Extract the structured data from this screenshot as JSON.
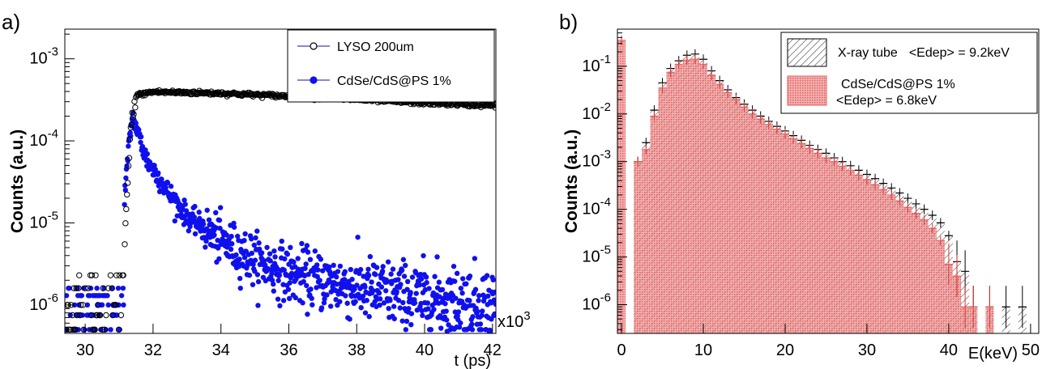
{
  "chart_data": [
    {
      "type": "scatter",
      "panel_label": "a)",
      "xlabel": "t (ps)",
      "ylabel": "Counts (a.u.)",
      "x_multiplier_label": "x10",
      "x_multiplier_exp": "3",
      "xlim": [
        29400,
        42100
      ],
      "ylim": [
        4.5e-07,
        0.0023
      ],
      "yscale": "log",
      "x_ticks": [
        {
          "v": 30,
          "label": "30"
        },
        {
          "v": 32,
          "label": "32"
        },
        {
          "v": 34,
          "label": "34"
        },
        {
          "v": 36,
          "label": "36"
        },
        {
          "v": 38,
          "label": "38"
        },
        {
          "v": 40,
          "label": "40"
        },
        {
          "v": 42,
          "label": "42"
        }
      ],
      "y_ticks": [
        {
          "v": 1e-06,
          "base": "10",
          "exp": "-6"
        },
        {
          "v": 1e-05,
          "base": "10",
          "exp": "-5"
        },
        {
          "v": 0.0001,
          "base": "10",
          "exp": "-4"
        },
        {
          "v": 0.001,
          "base": "10",
          "exp": "-3"
        }
      ],
      "legend_position": "top-right",
      "series": [
        {
          "name": "LYSO 200um",
          "marker": "open-circle",
          "color": "#000000",
          "description_points": [
            [
              29500,
              5e-07
            ],
            [
              30000,
              1.6e-06
            ],
            [
              30500,
              2.3e-06
            ],
            [
              31000,
              1.6e-06
            ],
            [
              31150,
              5e-06
            ],
            [
              31250,
              3e-05
            ],
            [
              31350,
              0.00015
            ],
            [
              31500,
              0.00036
            ],
            [
              32000,
              0.000395
            ],
            [
              34000,
              0.00038
            ],
            [
              36000,
              0.00035
            ],
            [
              38000,
              0.00032
            ],
            [
              40000,
              0.00029
            ],
            [
              42000,
              0.00027
            ]
          ]
        },
        {
          "name": "CdSe/CdS@PS 1%",
          "marker": "filled-circle",
          "color": "#1010ee",
          "description_points": [
            [
              29500,
              5e-07
            ],
            [
              30000,
              1e-06
            ],
            [
              30800,
              1.2e-06
            ],
            [
              31150,
              2e-05
            ],
            [
              31300,
              0.0001
            ],
            [
              31400,
              0.0002
            ],
            [
              31800,
              6e-05
            ],
            [
              32500,
              2.2e-05
            ],
            [
              33000,
              1.2e-05
            ],
            [
              34000,
              6e-06
            ],
            [
              35000,
              3.5e-06
            ],
            [
              36000,
              2.4e-06
            ],
            [
              38000,
              1.6e-06
            ],
            [
              40000,
              1.2e-06
            ],
            [
              42000,
              1e-06
            ]
          ]
        }
      ]
    },
    {
      "type": "histogram",
      "panel_label": "b)",
      "xlabel": "E(keV)",
      "ylabel": "Counts (a.u.)",
      "xlim": [
        -0.5,
        51
      ],
      "ylim": [
        2.5e-07,
        0.6
      ],
      "yscale": "log",
      "bin_width": 1,
      "x_ticks": [
        {
          "v": 0,
          "label": "0"
        },
        {
          "v": 10,
          "label": "10"
        },
        {
          "v": 20,
          "label": "20"
        },
        {
          "v": 30,
          "label": "30"
        },
        {
          "v": 40,
          "label": "40"
        },
        {
          "v": 50,
          "label": "50"
        }
      ],
      "y_ticks": [
        {
          "v": 1e-06,
          "base": "10",
          "exp": "-6"
        },
        {
          "v": 1e-05,
          "base": "10",
          "exp": "-5"
        },
        {
          "v": 0.0001,
          "base": "10",
          "exp": "-4"
        },
        {
          "v": 0.001,
          "base": "10",
          "exp": "-3"
        },
        {
          "v": 0.01,
          "base": "10",
          "exp": "-2"
        },
        {
          "v": 0.1,
          "base": "10",
          "exp": "-1"
        }
      ],
      "legend_position": "top-right",
      "series": [
        {
          "name": "X-ray tube",
          "stat_label": "<Edep> = 9.2keV",
          "fill": "hatched",
          "color": "#000000",
          "bins_x": [
            2,
            3,
            4,
            5,
            6,
            7,
            8,
            9,
            10,
            11,
            12,
            13,
            14,
            15,
            16,
            17,
            18,
            19,
            20,
            21,
            22,
            23,
            24,
            25,
            26,
            27,
            28,
            29,
            30,
            31,
            32,
            33,
            34,
            35,
            36,
            37,
            38,
            39,
            40,
            41,
            42,
            43,
            44,
            45,
            46,
            47,
            48,
            49,
            50
          ],
          "values": [
            0.001,
            0.0025,
            0.012,
            0.045,
            0.09,
            0.13,
            0.17,
            0.18,
            0.14,
            0.08,
            0.05,
            0.032,
            0.022,
            0.016,
            0.012,
            0.009,
            0.007,
            0.0055,
            0.0044,
            0.0035,
            0.0028,
            0.0022,
            0.0018,
            0.0015,
            0.0012,
            0.001,
            0.00082,
            0.00066,
            0.00054,
            0.00044,
            0.00035,
            0.00028,
            0.00022,
            0.00017,
            0.00013,
            0.0001,
            7.5e-05,
            5.2e-05,
            2.8e-05,
            8e-06,
            5e-06,
            9e-07,
            0,
            9e-07,
            0,
            9e-07,
            0,
            9e-07,
            0
          ]
        },
        {
          "name": "CdSe/CdS@PS 1%",
          "stat_label": "<Edep> = 6.8keV",
          "fill": "dotted-red",
          "color": "#ea6464",
          "bins_x": [
            0,
            2,
            3,
            4,
            5,
            6,
            7,
            8,
            9,
            10,
            11,
            12,
            13,
            14,
            15,
            16,
            17,
            18,
            19,
            20,
            21,
            22,
            23,
            24,
            25,
            26,
            27,
            28,
            29,
            30,
            31,
            32,
            33,
            34,
            35,
            36,
            37,
            38,
            39,
            40,
            41,
            42,
            43,
            44,
            45,
            46
          ],
          "values": [
            0.35,
            0.001,
            0.0018,
            0.009,
            0.035,
            0.075,
            0.11,
            0.135,
            0.14,
            0.11,
            0.065,
            0.042,
            0.028,
            0.02,
            0.014,
            0.01,
            0.0078,
            0.006,
            0.0048,
            0.0038,
            0.003,
            0.0024,
            0.0019,
            0.0015,
            0.0012,
            0.001,
            0.0008,
            0.00065,
            0.00052,
            0.00042,
            0.00033,
            0.00026,
            0.0002,
            0.00015,
            0.00011,
            8.2e-05,
            6e-05,
            4e-05,
            2.2e-05,
            7e-06,
            4e-06,
            9e-07,
            9e-07,
            0,
            9e-07,
            0
          ]
        }
      ]
    }
  ]
}
